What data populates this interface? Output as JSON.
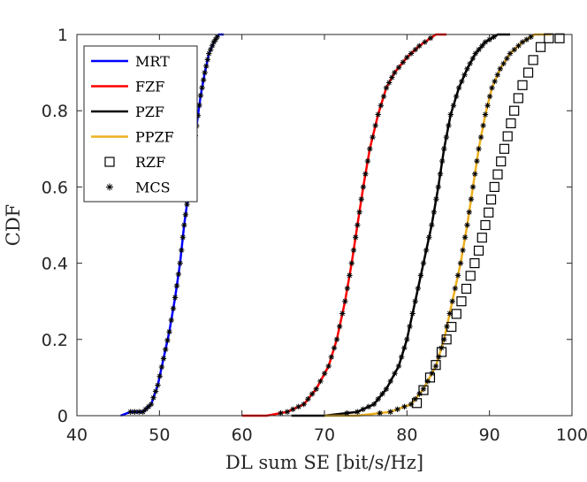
{
  "chart_data": {
    "type": "line",
    "title": "",
    "xlabel": "DL sum SE [bit/s/Hz]",
    "ylabel": "CDF",
    "xlim": [
      40,
      100
    ],
    "ylim": [
      0,
      1
    ],
    "xticks": [
      40,
      50,
      60,
      70,
      80,
      90,
      100
    ],
    "yticks": [
      0,
      0.2,
      0.4,
      0.6,
      0.8,
      1
    ],
    "ytick_labels": [
      "0",
      "0.2",
      "0.4",
      "0.6",
      "0.8",
      "1"
    ],
    "grid": false,
    "legend_position": "top-left",
    "legend": [
      {
        "name": "MRT",
        "kind": "line",
        "color": "#0000ff"
      },
      {
        "name": "FZF",
        "kind": "line",
        "color": "#ff0000"
      },
      {
        "name": "PZF",
        "kind": "line",
        "color": "#000000"
      },
      {
        "name": "PPZF",
        "kind": "line",
        "color": "#edb120"
      },
      {
        "name": "RZF",
        "kind": "square",
        "color": "#000000"
      },
      {
        "name": "MCS",
        "kind": "star",
        "color": "#000000"
      }
    ],
    "series": [
      {
        "name": "MRT",
        "color": "#0000ff",
        "x": [
          45.3,
          46.5,
          48.0,
          49.0,
          49.8,
          50.5,
          51.2,
          51.9,
          52.5,
          53.0,
          53.5,
          54.0,
          54.5,
          55.0,
          55.5,
          56.0,
          56.6,
          57.2,
          57.8
        ],
        "y": [
          0.0,
          0.01,
          0.01,
          0.03,
          0.08,
          0.15,
          0.22,
          0.31,
          0.4,
          0.5,
          0.58,
          0.68,
          0.76,
          0.84,
          0.9,
          0.95,
          0.98,
          1.0,
          1.0
        ]
      },
      {
        "name": "FZF",
        "color": "#ff0000",
        "x": [
          60.0,
          63.0,
          65.5,
          67.5,
          69.0,
          70.5,
          71.5,
          72.5,
          73.3,
          74.0,
          74.7,
          75.5,
          76.5,
          77.5,
          78.5,
          80.0,
          81.5,
          83.5,
          84.8
        ],
        "y": [
          0.0,
          0.0,
          0.01,
          0.03,
          0.07,
          0.13,
          0.2,
          0.3,
          0.4,
          0.5,
          0.6,
          0.7,
          0.79,
          0.86,
          0.9,
          0.94,
          0.97,
          1.0,
          1.0
        ]
      },
      {
        "name": "PZF",
        "color": "#000000",
        "x": [
          66.0,
          70.0,
          74.0,
          76.0,
          77.5,
          79.0,
          80.0,
          81.0,
          82.0,
          83.0,
          83.8,
          84.5,
          85.3,
          86.3,
          87.3,
          88.3,
          89.5,
          91.0,
          92.5
        ],
        "y": [
          0.0,
          0.0,
          0.01,
          0.03,
          0.07,
          0.13,
          0.2,
          0.3,
          0.4,
          0.5,
          0.6,
          0.7,
          0.79,
          0.86,
          0.91,
          0.95,
          0.98,
          1.0,
          1.0
        ]
      },
      {
        "name": "PPZF",
        "color": "#edb120",
        "x": [
          70.0,
          74.0,
          78.0,
          80.5,
          82.0,
          83.5,
          84.5,
          85.5,
          86.5,
          87.3,
          88.0,
          88.7,
          89.5,
          90.3,
          91.3,
          92.5,
          94.0,
          95.5,
          97.5
        ],
        "y": [
          0.0,
          0.0,
          0.01,
          0.03,
          0.07,
          0.13,
          0.2,
          0.3,
          0.4,
          0.5,
          0.6,
          0.7,
          0.79,
          0.86,
          0.91,
          0.95,
          0.98,
          1.0,
          1.0
        ]
      },
      {
        "name": "RZF",
        "color": "#000000",
        "marker": "square",
        "x": [
          81.2,
          82.0,
          82.8,
          83.5,
          84.2,
          84.8,
          85.4,
          86.0,
          86.6,
          87.2,
          87.7,
          88.2,
          88.7,
          89.1,
          89.5,
          89.9,
          90.2,
          90.6,
          91.0,
          91.4,
          91.8,
          92.2,
          92.6,
          93.0,
          93.5,
          94.0,
          94.7,
          95.3,
          96.2,
          97.2,
          98.5
        ],
        "y": [
          0.033,
          0.067,
          0.1,
          0.133,
          0.167,
          0.2,
          0.233,
          0.267,
          0.3,
          0.333,
          0.367,
          0.4,
          0.433,
          0.467,
          0.5,
          0.533,
          0.567,
          0.6,
          0.633,
          0.667,
          0.7,
          0.733,
          0.767,
          0.8,
          0.833,
          0.867,
          0.9,
          0.933,
          0.967,
          0.99,
          0.99
        ]
      }
    ]
  }
}
